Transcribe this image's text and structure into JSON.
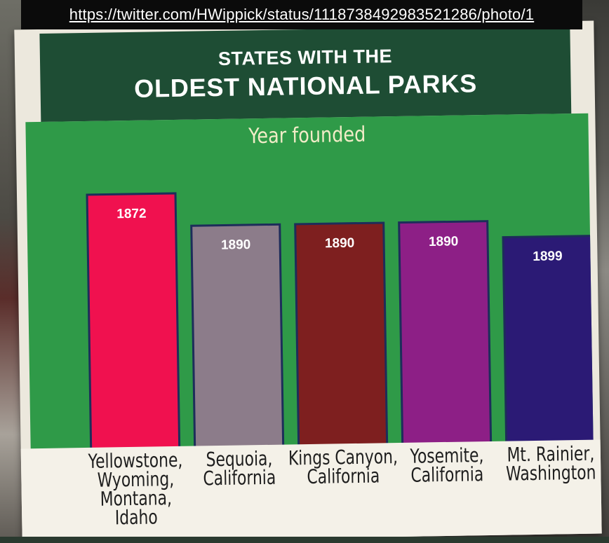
{
  "source_url": "https://twitter.com/HWippick/status/1118738492983521286/photo/1",
  "chart_data": {
    "type": "bar",
    "title": "STATES WITH THE",
    "title_line2": "OLDEST NATIONAL PARKS",
    "subtitle": "Year founded",
    "categories": [
      "Yellowstone,\nWyoming,\nMontana, Idaho",
      "Sequoia,\nCalifornia",
      "Kings Canyon,\nCalifornia",
      "Yosemite,\nCalifornia",
      "Mt. Rainier,\nWashington"
    ],
    "values": [
      1872,
      1890,
      1890,
      1890,
      1899
    ],
    "value_labels": [
      "1872",
      "1890",
      "1890",
      "1890",
      "1899"
    ],
    "bar_colors": [
      "#f0114f",
      "#8c7c8a",
      "#7e1f1f",
      "#8d1f86",
      "#2b1a75"
    ],
    "xlabel": "",
    "ylabel": "",
    "grid": false,
    "legend": "none"
  },
  "colors": {
    "title_band": "#1e4d34",
    "chart_background": "#2f9a48",
    "label_band": "#f4f1e8",
    "subtitle_text": "#f1ecc7"
  }
}
